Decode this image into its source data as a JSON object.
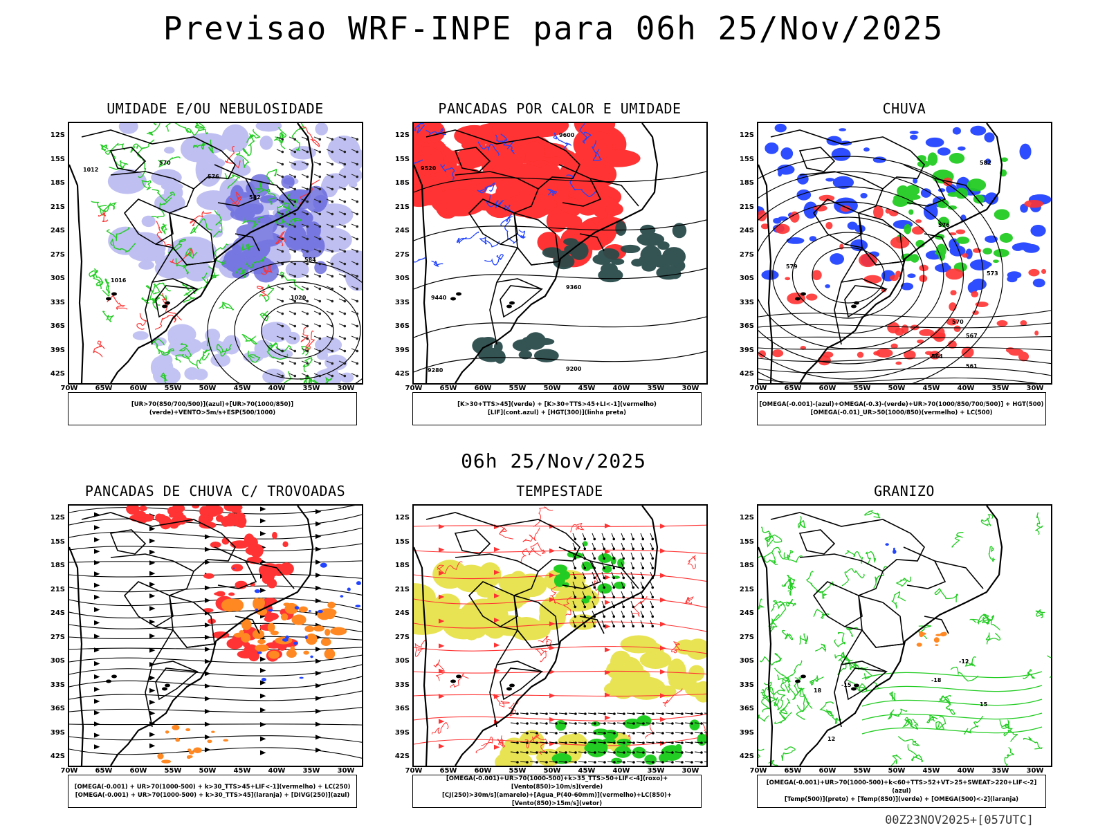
{
  "title": "Previsao WRF-INPE  para 06h 25/Nov/2025",
  "mid_date": "06h 25/Nov/2025",
  "footer": "00Z23NOV2025+[057UTC]",
  "lat_labels": [
    "12S",
    "15S",
    "18S",
    "21S",
    "24S",
    "27S",
    "30S",
    "33S",
    "36S",
    "39S",
    "42S"
  ],
  "lon_labels": [
    "70W",
    "65W",
    "60W",
    "55W",
    "50W",
    "45W",
    "40W",
    "35W",
    "30W"
  ],
  "panels": [
    {
      "title": "UMIDADE E/OU NEBULOSIDADE",
      "legend": [
        "[UR>70(850/700/500)](azul)+[UR>70(1000/850)](verde)+VENTO>5m/s+ESP(500/1000)"
      ],
      "contour_labels": [
        "1012",
        "1016",
        "1020",
        "570",
        "576",
        "582",
        "584"
      ]
    },
    {
      "title": "PANCADAS POR CALOR E UMIDADE",
      "legend": [
        "[K>30+TTS>45](verde) + [K>30+TTS>45+LI<-1](vermelho)",
        "[LIF](cont.azul) + [HGT(300)](linha preta)"
      ],
      "contour_labels": [
        "9600",
        "9520",
        "9440",
        "9360",
        "9280",
        "9200"
      ]
    },
    {
      "title": "CHUVA",
      "legend": [
        "[OMEGA(-0.001)-(azul)+OMEGA(-0.3)-(verde)+UR>70(1000/850/700/500)] + HGT(500)",
        "[OMEGA(-0.01)_UR>50(1000/850)(vermelho) + LC(500)"
      ],
      "contour_labels": [
        "582",
        "579",
        "576",
        "573",
        "570",
        "567",
        "564",
        "561"
      ]
    },
    {
      "title": "PANCADAS DE CHUVA C/ TROVOADAS",
      "legend": [
        "[OMEGA(-0.001) + UR>70(1000-500) + k>30_TTS>45+LIF<-1](vermelho) + LC(250)",
        "[OMEGA(-0.001) + UR>70(1000-500) + k>30_TTS>45](laranja) + [DIVG(250)](azul)"
      ],
      "contour_labels": []
    },
    {
      "title": "TEMPESTADE",
      "legend": [
        "[OMEGA(-0.001)+UR>70(1000-500)+k>35_TTS>50+LIF<-4](roxo)+[Vento(850)>10m/s](verde)",
        "[CJ(250)>30m/s](amarelo)+[Agua_P(40-60mm)](vermelho)+LC(850)+[Vento(850)>15m/s](vetor)"
      ],
      "contour_labels": []
    },
    {
      "title": "GRANIZO",
      "legend": [
        "[OMEGA(-0.001)+UR>70(1000-500)+k<60+TTS>52+VT>25+SWEAT>220+LIF<-2](azul)",
        "[Temp(500)](preto) + [Temp(850)](verde) + [OMEGA(500)<-2](laranja)"
      ],
      "contour_labels": [
        "-15",
        "-12",
        "-18",
        "15",
        "18",
        "12"
      ]
    }
  ],
  "colors": {
    "green": "#22cc22",
    "red": "#ff3333",
    "blue": "#2244ff",
    "lavender": "#aaaaee",
    "darkteal": "#2a4a4a",
    "orange": "#ff8822",
    "yellow": "#e6e040"
  }
}
